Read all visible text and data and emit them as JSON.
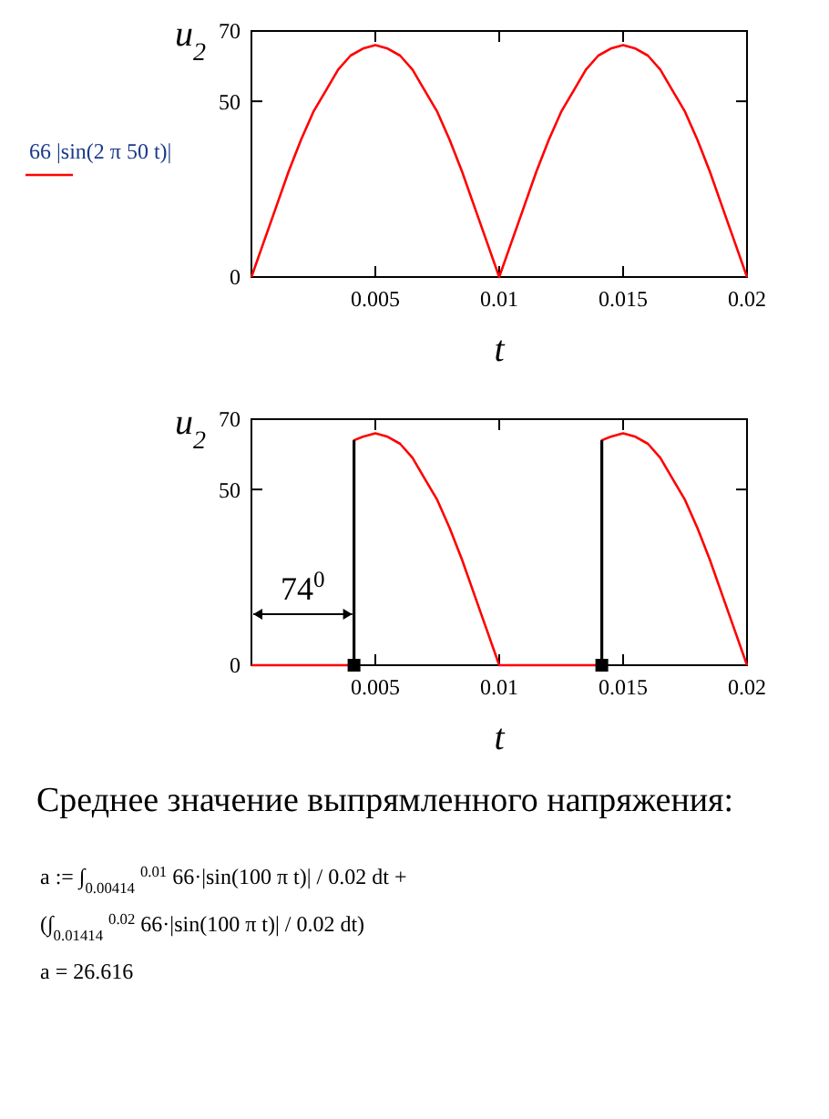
{
  "chart_data": [
    {
      "type": "line",
      "xlabel": "t",
      "ylabel": "u$_{2}$",
      "xlim": [
        0,
        0.02
      ],
      "xticks": [
        0.005,
        0.01,
        0.015,
        0.02
      ],
      "ylim": [
        0,
        70
      ],
      "yticks": [
        0,
        50,
        70
      ],
      "grid": false,
      "legend": "left",
      "series": [
        {
          "name": "66 |sin(2 π 50 t)|",
          "color": "#ff0000",
          "x": [
            0,
            0.0005,
            0.001,
            0.0015,
            0.002,
            0.0025,
            0.003,
            0.0035,
            0.004,
            0.0045,
            0.005,
            0.0055,
            0.006,
            0.0065,
            0.007,
            0.0075,
            0.008,
            0.0085,
            0.009,
            0.0095,
            0.01,
            0.0105,
            0.011,
            0.0115,
            0.012,
            0.0125,
            0.013,
            0.0135,
            0.014,
            0.0145,
            0.015,
            0.0155,
            0.016,
            0.0165,
            0.017,
            0.0175,
            0.018,
            0.0185,
            0.019,
            0.0195,
            0.02
          ],
          "values": [
            0,
            10,
            20,
            30,
            39,
            47,
            53,
            59,
            63,
            65,
            66,
            65,
            63,
            59,
            53,
            47,
            39,
            30,
            20,
            10,
            0,
            10,
            20,
            30,
            39,
            47,
            53,
            59,
            63,
            65,
            66,
            65,
            63,
            59,
            53,
            47,
            39,
            30,
            20,
            10,
            0
          ]
        }
      ]
    },
    {
      "type": "line",
      "xlabel": "t",
      "ylabel": "u$_{2}$",
      "xlim": [
        0,
        0.02
      ],
      "xticks": [
        0.005,
        0.01,
        0.015,
        0.02
      ],
      "ylim": [
        0,
        70
      ],
      "yticks": [
        0,
        50,
        70
      ],
      "grid": false,
      "series": [
        {
          "color": "#ff0000",
          "x": [
            0,
            0.00414,
            0.00414,
            0.0045,
            0.005,
            0.0055,
            0.006,
            0.0065,
            0.007,
            0.0075,
            0.008,
            0.0085,
            0.009,
            0.0095,
            0.01,
            0.01414,
            0.01414,
            0.0145,
            0.015,
            0.0155,
            0.016,
            0.0165,
            0.017,
            0.0175,
            0.018,
            0.0185,
            0.019,
            0.0195,
            0.02
          ],
          "values": [
            0,
            0,
            64,
            65,
            66,
            65,
            63,
            59,
            53,
            47,
            39,
            30,
            20,
            10,
            0,
            0,
            64,
            65,
            66,
            65,
            63,
            59,
            53,
            47,
            39,
            30,
            20,
            10,
            0
          ]
        },
        {
          "color": "#000000",
          "x": [
            0.00414,
            0.00414
          ],
          "values": [
            0,
            64
          ]
        },
        {
          "color": "#000000",
          "x": [
            0.01414,
            0.01414
          ],
          "values": [
            0,
            64
          ]
        },
        {
          "type": "scatter",
          "marker": "square",
          "color": "#000000",
          "x": [
            0.00414,
            0.01414
          ],
          "values": [
            0,
            0
          ]
        }
      ],
      "annotations": [
        "74$^{0}$",
        "Среднее значение выпрямленного напряжения:",
        "a := ∫$_{0.00414}$$^{0.01}$ 66·|sin(100 π t)| / 0.02 dt +",
        "(∫$_{0.01414}$$^{0.02}$ 66·|sin(100 π t)| / 0.02 dt)",
        "a = 26.616"
      ]
    }
  ]
}
